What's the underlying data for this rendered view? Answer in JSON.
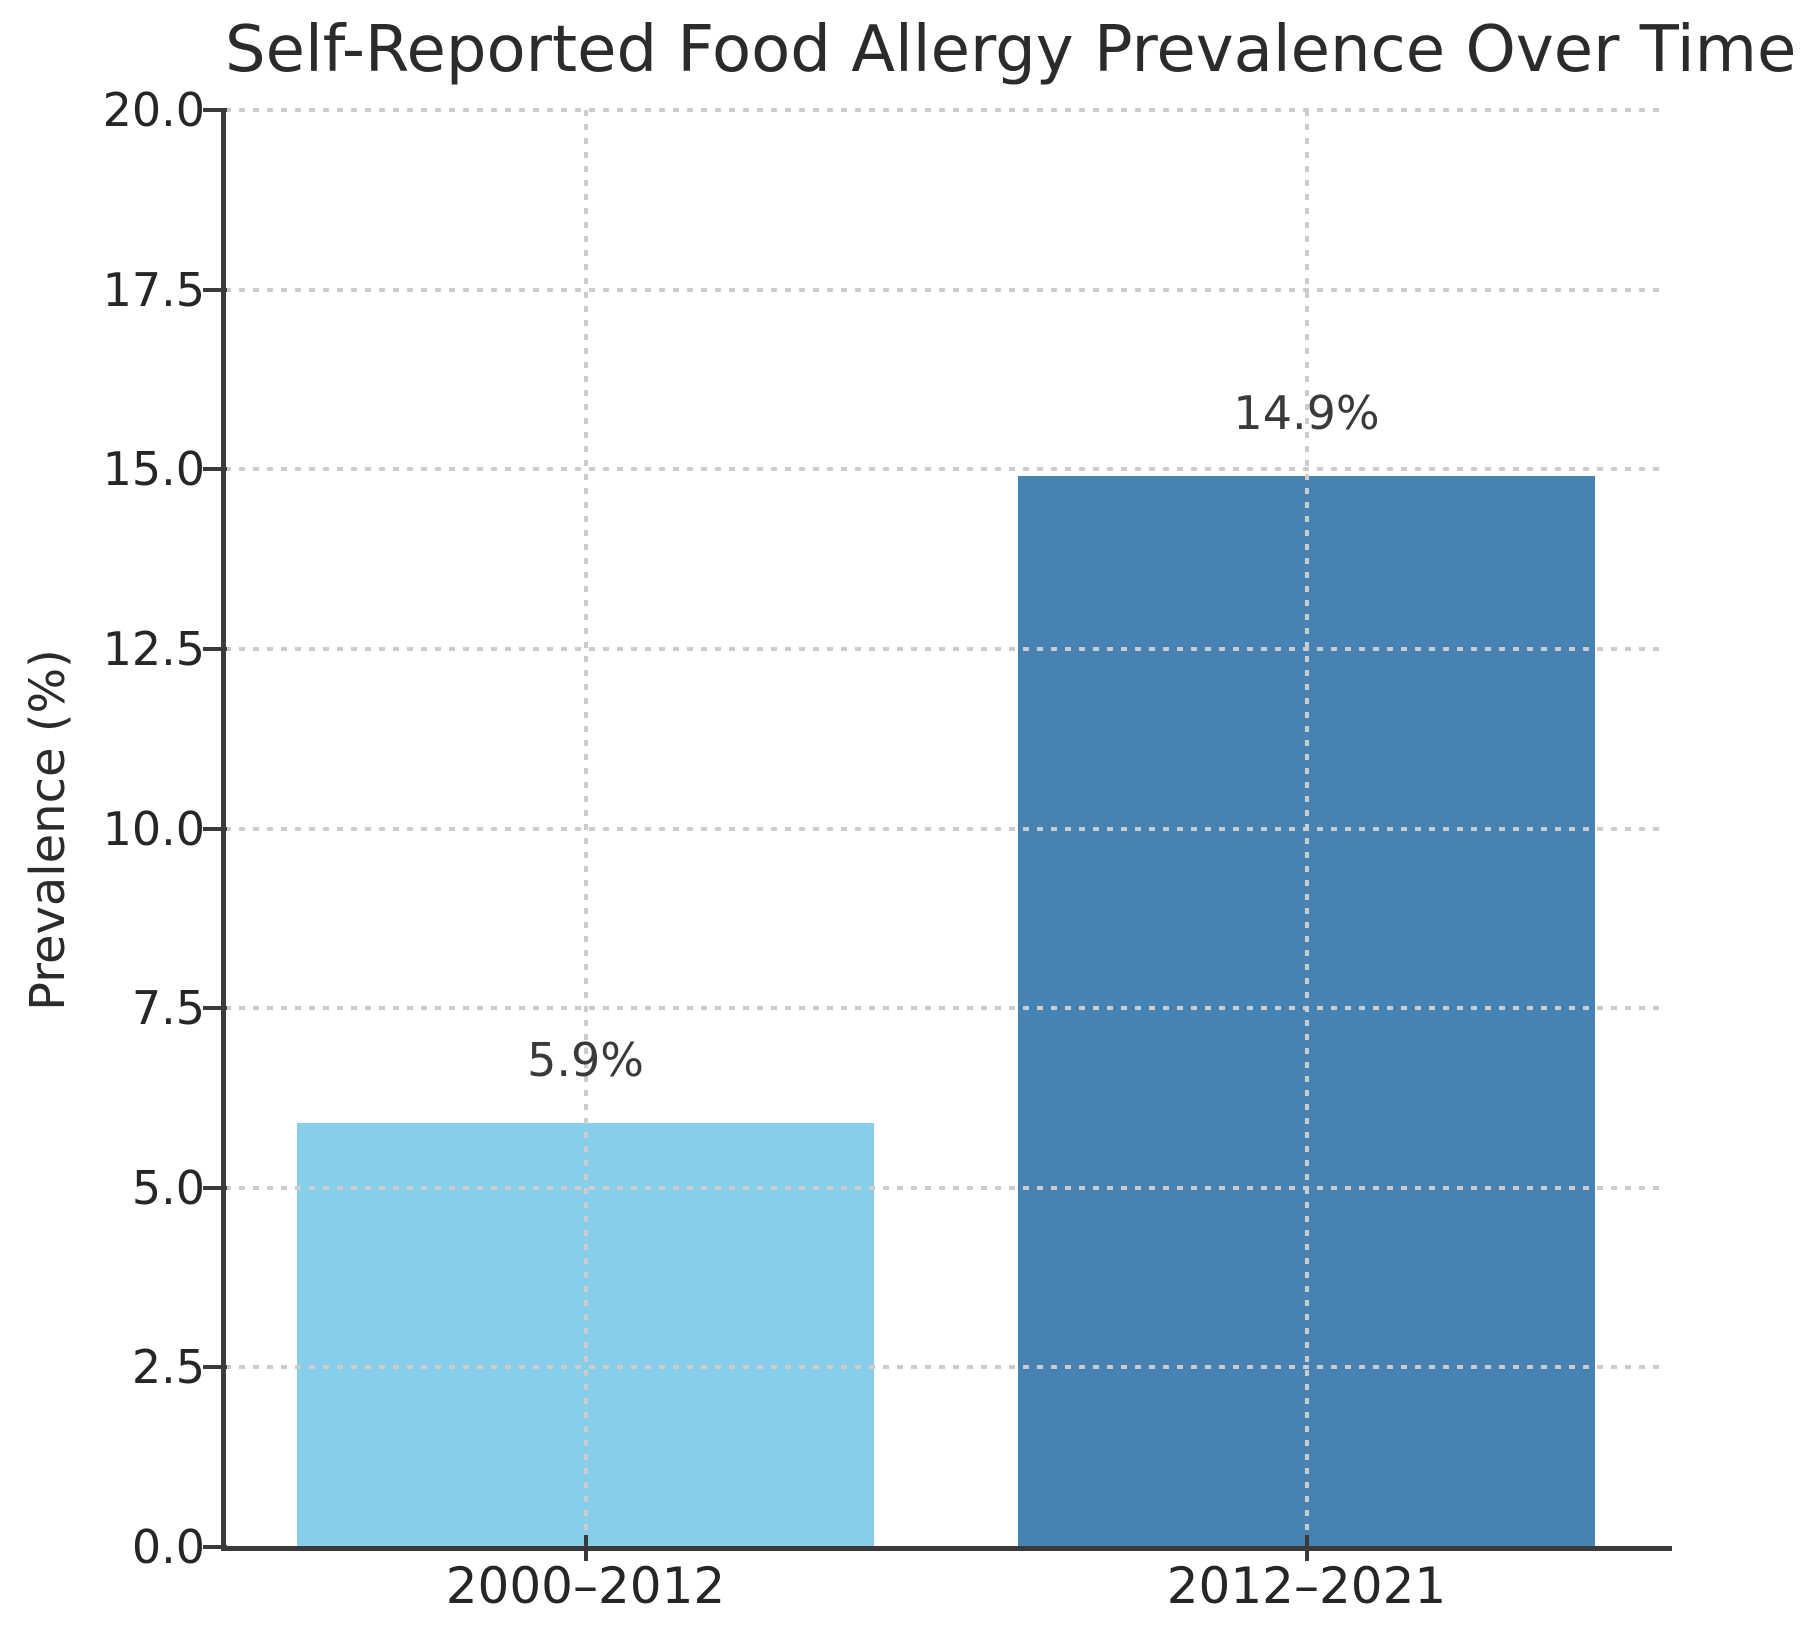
{
  "chart_data": {
    "type": "bar",
    "title": "Self-Reported Food Allergy Prevalence Over Time",
    "categories": [
      "2000–2012",
      "2012–2021"
    ],
    "values": [
      5.9,
      14.9
    ],
    "value_labels": [
      "5.9%",
      "14.9%"
    ],
    "bar_colors": [
      "#87CEEB",
      "#4682B4"
    ],
    "xlabel": "",
    "ylabel": "Prevalence (%)",
    "ylim": [
      0,
      20
    ],
    "yticks": [
      0,
      2.5,
      5,
      7.5,
      10,
      12.5,
      15,
      17.5,
      20
    ],
    "ytick_labels": [
      "0.0",
      "2.5",
      "5.0",
      "7.5",
      "10.0",
      "12.5",
      "15.0",
      "17.5",
      "20.0"
    ],
    "grid": true,
    "grid_linestyle": "dotted",
    "grid_over_bars": true,
    "legend": "none",
    "bar_width_fraction": 0.8,
    "colors": {
      "background": "#ffffff",
      "spine": "#3a3a3a",
      "tick": "#3a3a3a",
      "tick_label": "#262626",
      "grid": "#cccccc",
      "title": "#2b2b2b",
      "value_label": "#3a3a3a"
    }
  }
}
